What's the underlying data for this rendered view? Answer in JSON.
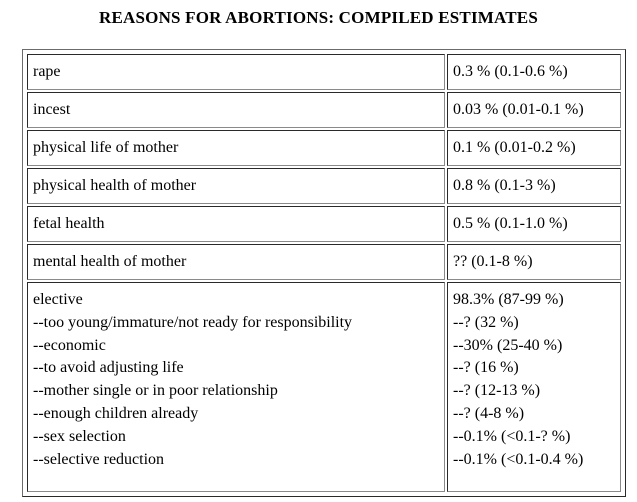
{
  "title": "REASONS FOR ABORTIONS: COMPILED ESTIMATES",
  "rows": [
    {
      "reason": "rape",
      "estimate": "0.3 % (0.1-0.6 %)"
    },
    {
      "reason": "incest",
      "estimate": "0.03 % (0.01-0.1 %)"
    },
    {
      "reason": "physical life of mother",
      "estimate": "0.1 % (0.01-0.2 %)"
    },
    {
      "reason": "physical health of mother",
      "estimate": "0.8 % (0.1-3 %)"
    },
    {
      "reason": "fetal health",
      "estimate": "0.5 % (0.1-1.0 %)"
    },
    {
      "reason": "mental health of mother",
      "estimate": "?? (0.1-8 %)"
    }
  ],
  "elective": {
    "reasons": [
      "elective",
      "--too young/immature/not ready for responsibility",
      "--economic",
      "--to avoid adjusting life",
      "--mother single or in poor relationship",
      "--enough children already",
      "--sex selection",
      "--selective reduction"
    ],
    "estimates": [
      "98.3% (87-99 %)",
      "--? (32 %)",
      "--30% (25-40 %)",
      "--? (16 %)",
      "--? (12-13 %)",
      "--? (4-8 %)",
      "--0.1% (<0.1-? %)",
      "--0.1% (<0.1-0.4 %)"
    ]
  }
}
